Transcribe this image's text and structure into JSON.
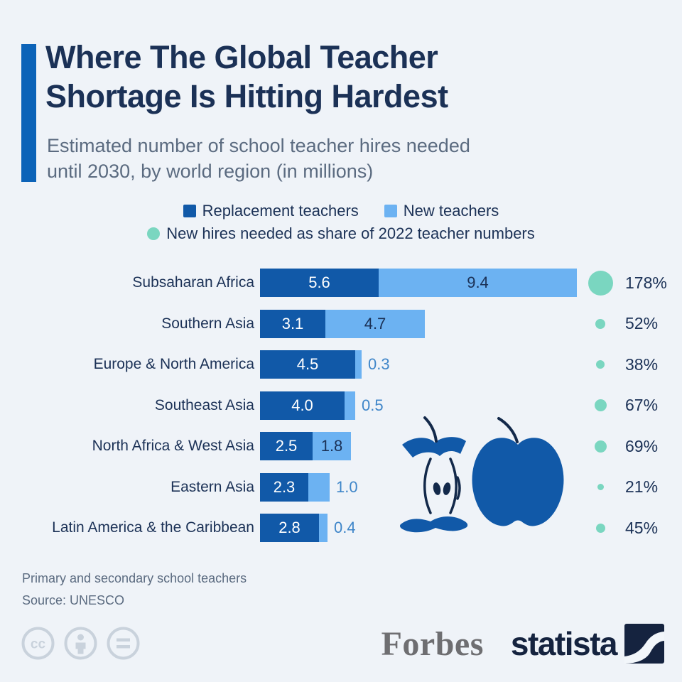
{
  "colors": {
    "background": "#eff3f8",
    "accent_bar": "#0c63b8",
    "replacement_blue": "#1159a8",
    "new_light_blue": "#6cb2f2",
    "share_teal": "#7ad6c0",
    "title_navy": "#1b3156",
    "subtitle_gray": "#5b6b80",
    "outside_value_blue": "#3f86c9"
  },
  "header": {
    "title_lines": [
      "Where The Global Teacher",
      "Shortage Is Hitting Hardest"
    ],
    "subtitle_lines": [
      "Estimated number of school teacher hires needed",
      "until 2030, by world region (in millions)"
    ]
  },
  "legend": {
    "items": [
      {
        "label": "Replacement teachers",
        "swatch": "square",
        "color": "#1159a8"
      },
      {
        "label": "New teachers",
        "swatch": "square",
        "color": "#6cb2f2"
      },
      {
        "label": "New hires needed as share of 2022 teacher numbers",
        "swatch": "circle",
        "color": "#7ad6c0"
      }
    ]
  },
  "chart_data": {
    "type": "bar",
    "orientation": "horizontal",
    "stacked": true,
    "title": "Where The Global Teacher Shortage Is Hitting Hardest",
    "subtitle": "Estimated number of school teacher hires needed until 2030, by world region (in millions)",
    "unit": "millions of teacher hires",
    "xlim": [
      0,
      15
    ],
    "grid": false,
    "value_labels": true,
    "categories": [
      "Subsaharan Africa",
      "Southern Asia",
      "Europe & North America",
      "Southeast Asia",
      "North Africa & West Asia",
      "Eastern Asia",
      "Latin America & the Caribbean"
    ],
    "series": [
      {
        "name": "Replacement teachers",
        "color": "#1159a8",
        "values": [
          5.6,
          3.1,
          4.5,
          4.0,
          2.5,
          2.3,
          2.8
        ]
      },
      {
        "name": "New teachers",
        "color": "#6cb2f2",
        "values": [
          9.4,
          4.7,
          0.3,
          0.5,
          1.8,
          1.0,
          0.4
        ]
      }
    ],
    "bubble_series": {
      "name": "New hires needed as share of 2022 teacher numbers",
      "color": "#7ad6c0",
      "unit": "%",
      "values": [
        178,
        52,
        38,
        67,
        69,
        21,
        45
      ],
      "labels": [
        "178%",
        "52%",
        "38%",
        "67%",
        "69%",
        "21%",
        "45%"
      ]
    }
  },
  "footer": {
    "note": "Primary and secondary school teachers",
    "source": "Source: UNESCO",
    "cc_icons": [
      "cc-icon",
      "attribution-icon",
      "equal-icon"
    ],
    "forbes_logo_text": "Forbes",
    "statista_logo_text": "statista"
  }
}
